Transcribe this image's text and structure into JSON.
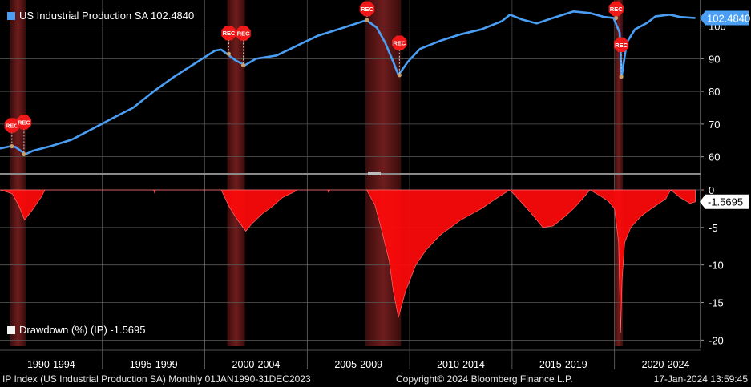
{
  "chart_data": [
    {
      "type": "line",
      "series": [
        {
          "name": "US Industrial Production SA",
          "color": "#4a9ff5",
          "last_label": "102.4840",
          "x": [
            1990.0,
            1990.5,
            1990.75,
            1991.25,
            1991.6,
            1992.5,
            1993.5,
            1994.5,
            1995.5,
            1996.5,
            1997.5,
            1998.5,
            1999.5,
            2000.5,
            2000.8,
            2001.5,
            2001.95,
            2002.5,
            2003.5,
            2004.5,
            2005.5,
            2006.5,
            2007.5,
            2007.9,
            2008.4,
            2008.8,
            2009.2,
            2009.45,
            2009.9,
            2010.5,
            2011.5,
            2012.5,
            2013.5,
            2014.5,
            2014.9,
            2015.5,
            2016.2,
            2017.0,
            2018.0,
            2018.8,
            2019.5,
            2019.95,
            2020.25,
            2020.35,
            2020.6,
            2021.0,
            2021.6,
            2022.0,
            2022.7,
            2023.2,
            2023.95
          ],
          "values": [
            62.5,
            63.2,
            63.0,
            60.8,
            61.8,
            63.3,
            65.2,
            68.5,
            71.8,
            75.0,
            80.0,
            84.5,
            88.5,
            92.5,
            92.8,
            89.5,
            88.0,
            90.0,
            91.0,
            94.0,
            97.0,
            99.0,
            101.0,
            101.8,
            99.5,
            95.0,
            89.0,
            85.0,
            89.0,
            93.0,
            95.5,
            97.5,
            99.0,
            101.5,
            103.5,
            102.0,
            100.8,
            102.5,
            104.5,
            104.0,
            102.8,
            102.5,
            98.0,
            84.5,
            95.0,
            99.0,
            101.0,
            103.0,
            103.5,
            102.8,
            102.484
          ]
        }
      ],
      "recessions": [
        [
          1990.58,
          1991.17
        ],
        [
          2001.17,
          2001.88
        ],
        [
          2007.92,
          2009.5
        ],
        [
          2020.08,
          2020.33
        ]
      ],
      "recession_markers": [
        {
          "x": 1990.58,
          "y": 63.2,
          "label": "REC"
        },
        {
          "x": 1991.17,
          "y": 60.8,
          "label": "REC"
        },
        {
          "x": 2001.17,
          "y": 91.5,
          "label": "REC"
        },
        {
          "x": 2001.88,
          "y": 88.0,
          "label": "REC"
        },
        {
          "x": 2007.92,
          "y": 101.8,
          "label": "REC"
        },
        {
          "x": 2009.5,
          "y": 85.0,
          "label": "REC"
        },
        {
          "x": 2020.08,
          "y": 102.5,
          "label": "REC"
        },
        {
          "x": 2020.33,
          "y": 84.5,
          "label": "REC"
        }
      ],
      "yticks": [
        60,
        70,
        80,
        90,
        100
      ],
      "ylim": [
        55,
        108
      ],
      "xlim": [
        1990.0,
        2024.2
      ],
      "grid": true,
      "legend": "top-left"
    },
    {
      "type": "area",
      "series": [
        {
          "name": "Drawdown (%) (IP)",
          "color": "#ff0a0a",
          "last_label": "-1.5695",
          "x": [
            1990.0,
            1990.6,
            1990.9,
            1991.2,
            1991.6,
            1992.0,
            1992.2,
            1992.6,
            1993.0,
            1997.5,
            1997.55,
            1997.6,
            2000.0,
            2000.8,
            2001.2,
            2001.6,
            2002.0,
            2002.3,
            2002.8,
            2003.3,
            2003.8,
            2004.4,
            2004.5,
            2006.0,
            2006.05,
            2006.1,
            2007.9,
            2008.3,
            2008.6,
            2009.0,
            2009.2,
            2009.45,
            2009.8,
            2010.3,
            2010.8,
            2011.5,
            2012.5,
            2013.5,
            2014.3,
            2014.9,
            2015.5,
            2015.9,
            2016.5,
            2017.0,
            2017.6,
            2018.0,
            2018.5,
            2018.8,
            2019.3,
            2019.7,
            2020.0,
            2020.2,
            2020.3,
            2020.37,
            2020.5,
            2020.8,
            2021.3,
            2021.8,
            2022.5,
            2022.75,
            2023.2,
            2023.7,
            2023.95
          ],
          "values": [
            0,
            -0.5,
            -2.0,
            -4.0,
            -2.6,
            -1.0,
            0,
            0,
            0,
            0,
            -0.4,
            0,
            0,
            0,
            -2.3,
            -4.0,
            -5.5,
            -4.5,
            -3.2,
            -2.2,
            -1.0,
            -0.2,
            0,
            0,
            -0.4,
            0,
            0,
            -2.0,
            -5.0,
            -9.5,
            -13.5,
            -17.0,
            -13.5,
            -10.0,
            -8.0,
            -6.0,
            -4.0,
            -2.5,
            -1.0,
            0,
            -1.8,
            -3.0,
            -5.0,
            -4.8,
            -3.5,
            -2.5,
            -1.0,
            0,
            -0.8,
            -1.5,
            -2.5,
            -7.0,
            -19.0,
            -12.0,
            -7.0,
            -5.0,
            -3.5,
            -2.5,
            -1.2,
            0,
            -1.0,
            -1.8,
            -1.5695
          ]
        }
      ],
      "recessions": [
        [
          1990.58,
          1991.17
        ],
        [
          2001.17,
          2001.88
        ],
        [
          2007.92,
          2009.5
        ],
        [
          2020.08,
          2020.33
        ]
      ],
      "categories": [
        "1990-1994",
        "1995-1999",
        "2000-2004",
        "2005-2009",
        "2010-2014",
        "2015-2019",
        "2020-2024"
      ],
      "yticks": [
        0,
        -5,
        -10,
        -15,
        -20
      ],
      "ylim": [
        -20.6,
        0.0
      ],
      "xlim": [
        1990.0,
        2024.2
      ],
      "grid": true,
      "legend": "bottom-left"
    }
  ],
  "footer": {
    "left": "IP Index (US Industrial Production SA)  Monthly 01JAN1990-31DEC2023",
    "middle": "Copyright© 2024 Bloomberg Finance L.P.",
    "right": "17-Jan-2024 13:59:45"
  },
  "legend_top": "US Industrial Production SA 102.4840",
  "legend_bottom": "Drawdown (%) (IP) -1.5695"
}
